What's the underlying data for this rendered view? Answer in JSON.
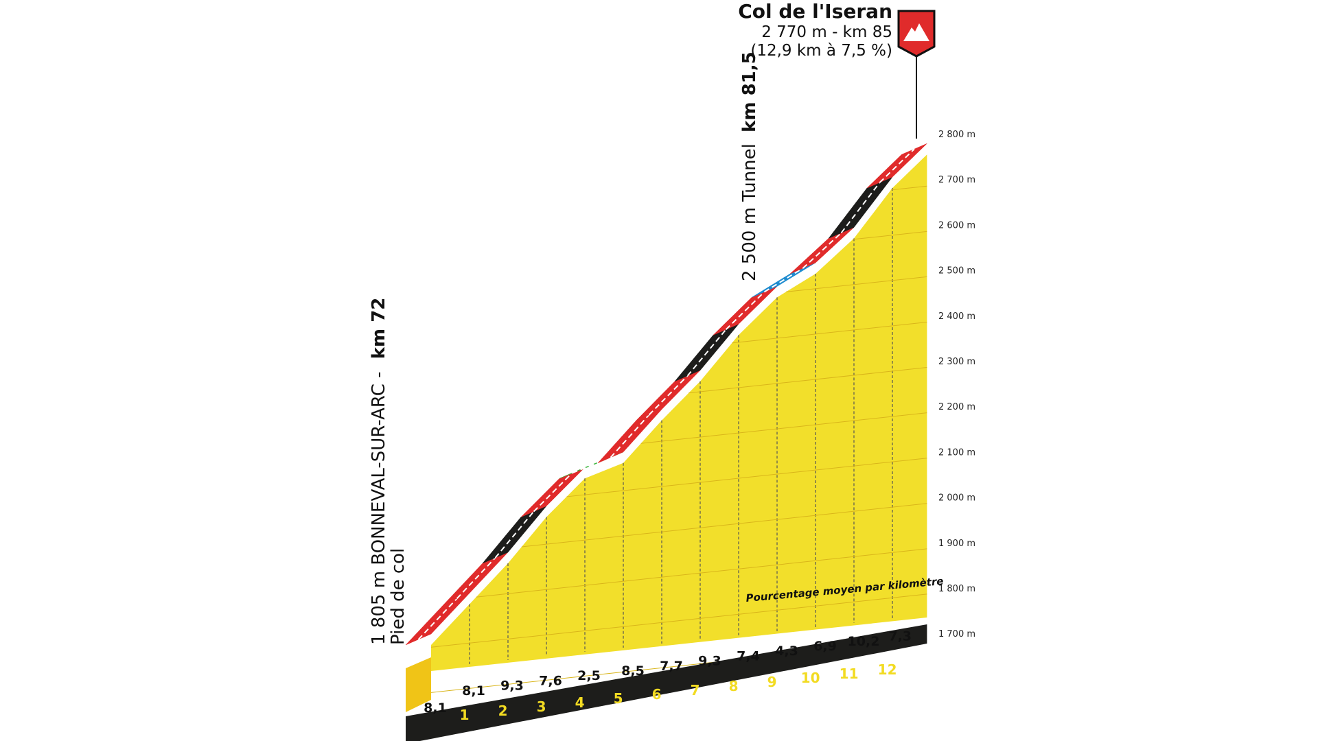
{
  "chart_data": {
    "type": "area",
    "title": "Col de l'Iseran",
    "summit": {
      "name": "Col de l'Iseran",
      "info_line1": "2 770 m - km 85",
      "info_line2": "(12,9 km à 7,5 %)",
      "icon": "mountain-summit-flag-icon"
    },
    "start": {
      "line1_prefix": "1 805 m BONNEVAL-SUR-ARC -",
      "line1_km": "km 72",
      "line2": "Pied de col"
    },
    "tunnel": {
      "text": "2 500 m Tunnel",
      "km": "km 81,5"
    },
    "legend_text": "Pourcentage moyen par kilomètre",
    "y_axis": {
      "unit": "m",
      "min": 1650,
      "max": 2800,
      "ticks": [
        "2 800 m",
        "2 700 m",
        "2 600 m",
        "2 500 m",
        "2 400 m",
        "2 300 m",
        "2 200 m",
        "2 100 m",
        "2 000 m",
        "1 900 m",
        "1 800 m",
        "1 700 m"
      ]
    },
    "x_axis": {
      "km_markers": [
        "1",
        "2",
        "3",
        "4",
        "5",
        "6",
        "7",
        "8",
        "9",
        "10",
        "11",
        "12"
      ]
    },
    "segments": [
      {
        "pct": 8.1,
        "label": "8,1",
        "color": "#e02b2b"
      },
      {
        "pct": 8.1,
        "label": "8,1",
        "color": "#e02b2b"
      },
      {
        "pct": 9.3,
        "label": "9,3",
        "color": "#1d1d1b"
      },
      {
        "pct": 7.6,
        "label": "7,6",
        "color": "#e02b2b"
      },
      {
        "pct": 2.5,
        "label": "2,5",
        "color": "#3cb43c"
      },
      {
        "pct": 8.5,
        "label": "8,5",
        "color": "#e02b2b"
      },
      {
        "pct": 7.7,
        "label": "7,7",
        "color": "#e02b2b"
      },
      {
        "pct": 9.3,
        "label": "9,3",
        "color": "#1d1d1b"
      },
      {
        "pct": 7.4,
        "label": "7,4",
        "color": "#e02b2b"
      },
      {
        "pct": 4.3,
        "label": "4,3",
        "color": "#1f8ccf"
      },
      {
        "pct": 6.9,
        "label": "6,9",
        "color": "#e02b2b"
      },
      {
        "pct": 10.2,
        "label": "10,2",
        "color": "#1d1d1b"
      },
      {
        "pct": 7.3,
        "label": "7,3",
        "color": "#e02b2b"
      }
    ],
    "colors": {
      "profile_fill": "#f2df2b",
      "profile_front": "#f0c417",
      "base": "#1d1d1b",
      "gridline": "#d9b51a",
      "km_text": "#f2db22"
    }
  }
}
